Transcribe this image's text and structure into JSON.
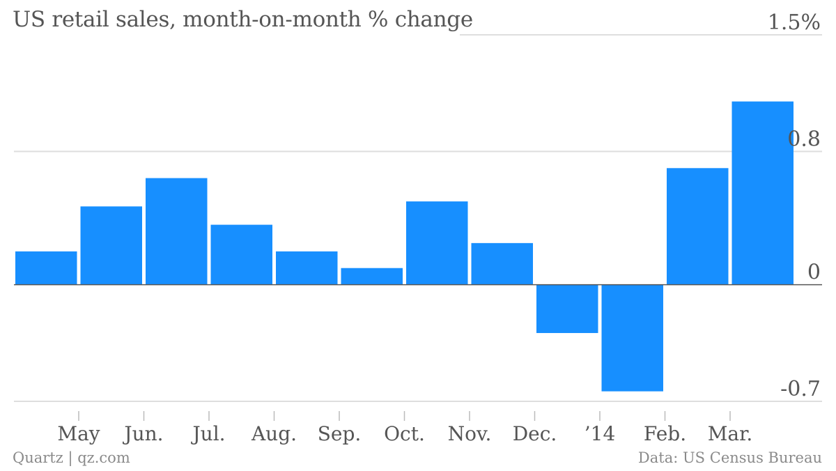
{
  "header": {
    "title": "US retail sales, month-on-month % change"
  },
  "footer": {
    "source_left": "Quartz | qz.com",
    "source_right": "Data: US Census Bureau"
  },
  "colors": {
    "bar": "#178FFF",
    "grid": "#dedede",
    "zero_line": "#555555",
    "text": "#555555"
  },
  "chart_data": {
    "type": "bar",
    "title": "US retail sales, month-on-month % change",
    "xlabel": "",
    "ylabel": "",
    "ylim": [
      -0.7,
      1.5
    ],
    "y_tick_labels": [
      {
        "value": 1.5,
        "label": "1.5%"
      },
      {
        "value": 0.8,
        "label": "0.8"
      },
      {
        "value": 0,
        "label": "0"
      },
      {
        "value": -0.7,
        "label": "-0.7"
      }
    ],
    "x_tick_labels": [
      "May",
      "Jun.",
      "Jul.",
      "Aug.",
      "Sep.",
      "Oct.",
      "Nov.",
      "Dec.",
      "’14",
      "Feb.",
      "Mar."
    ],
    "values": [
      0.2,
      0.47,
      0.64,
      0.36,
      0.2,
      0.1,
      0.5,
      0.25,
      -0.29,
      -0.64,
      0.7,
      1.1
    ],
    "grid": true,
    "legend": "none"
  }
}
